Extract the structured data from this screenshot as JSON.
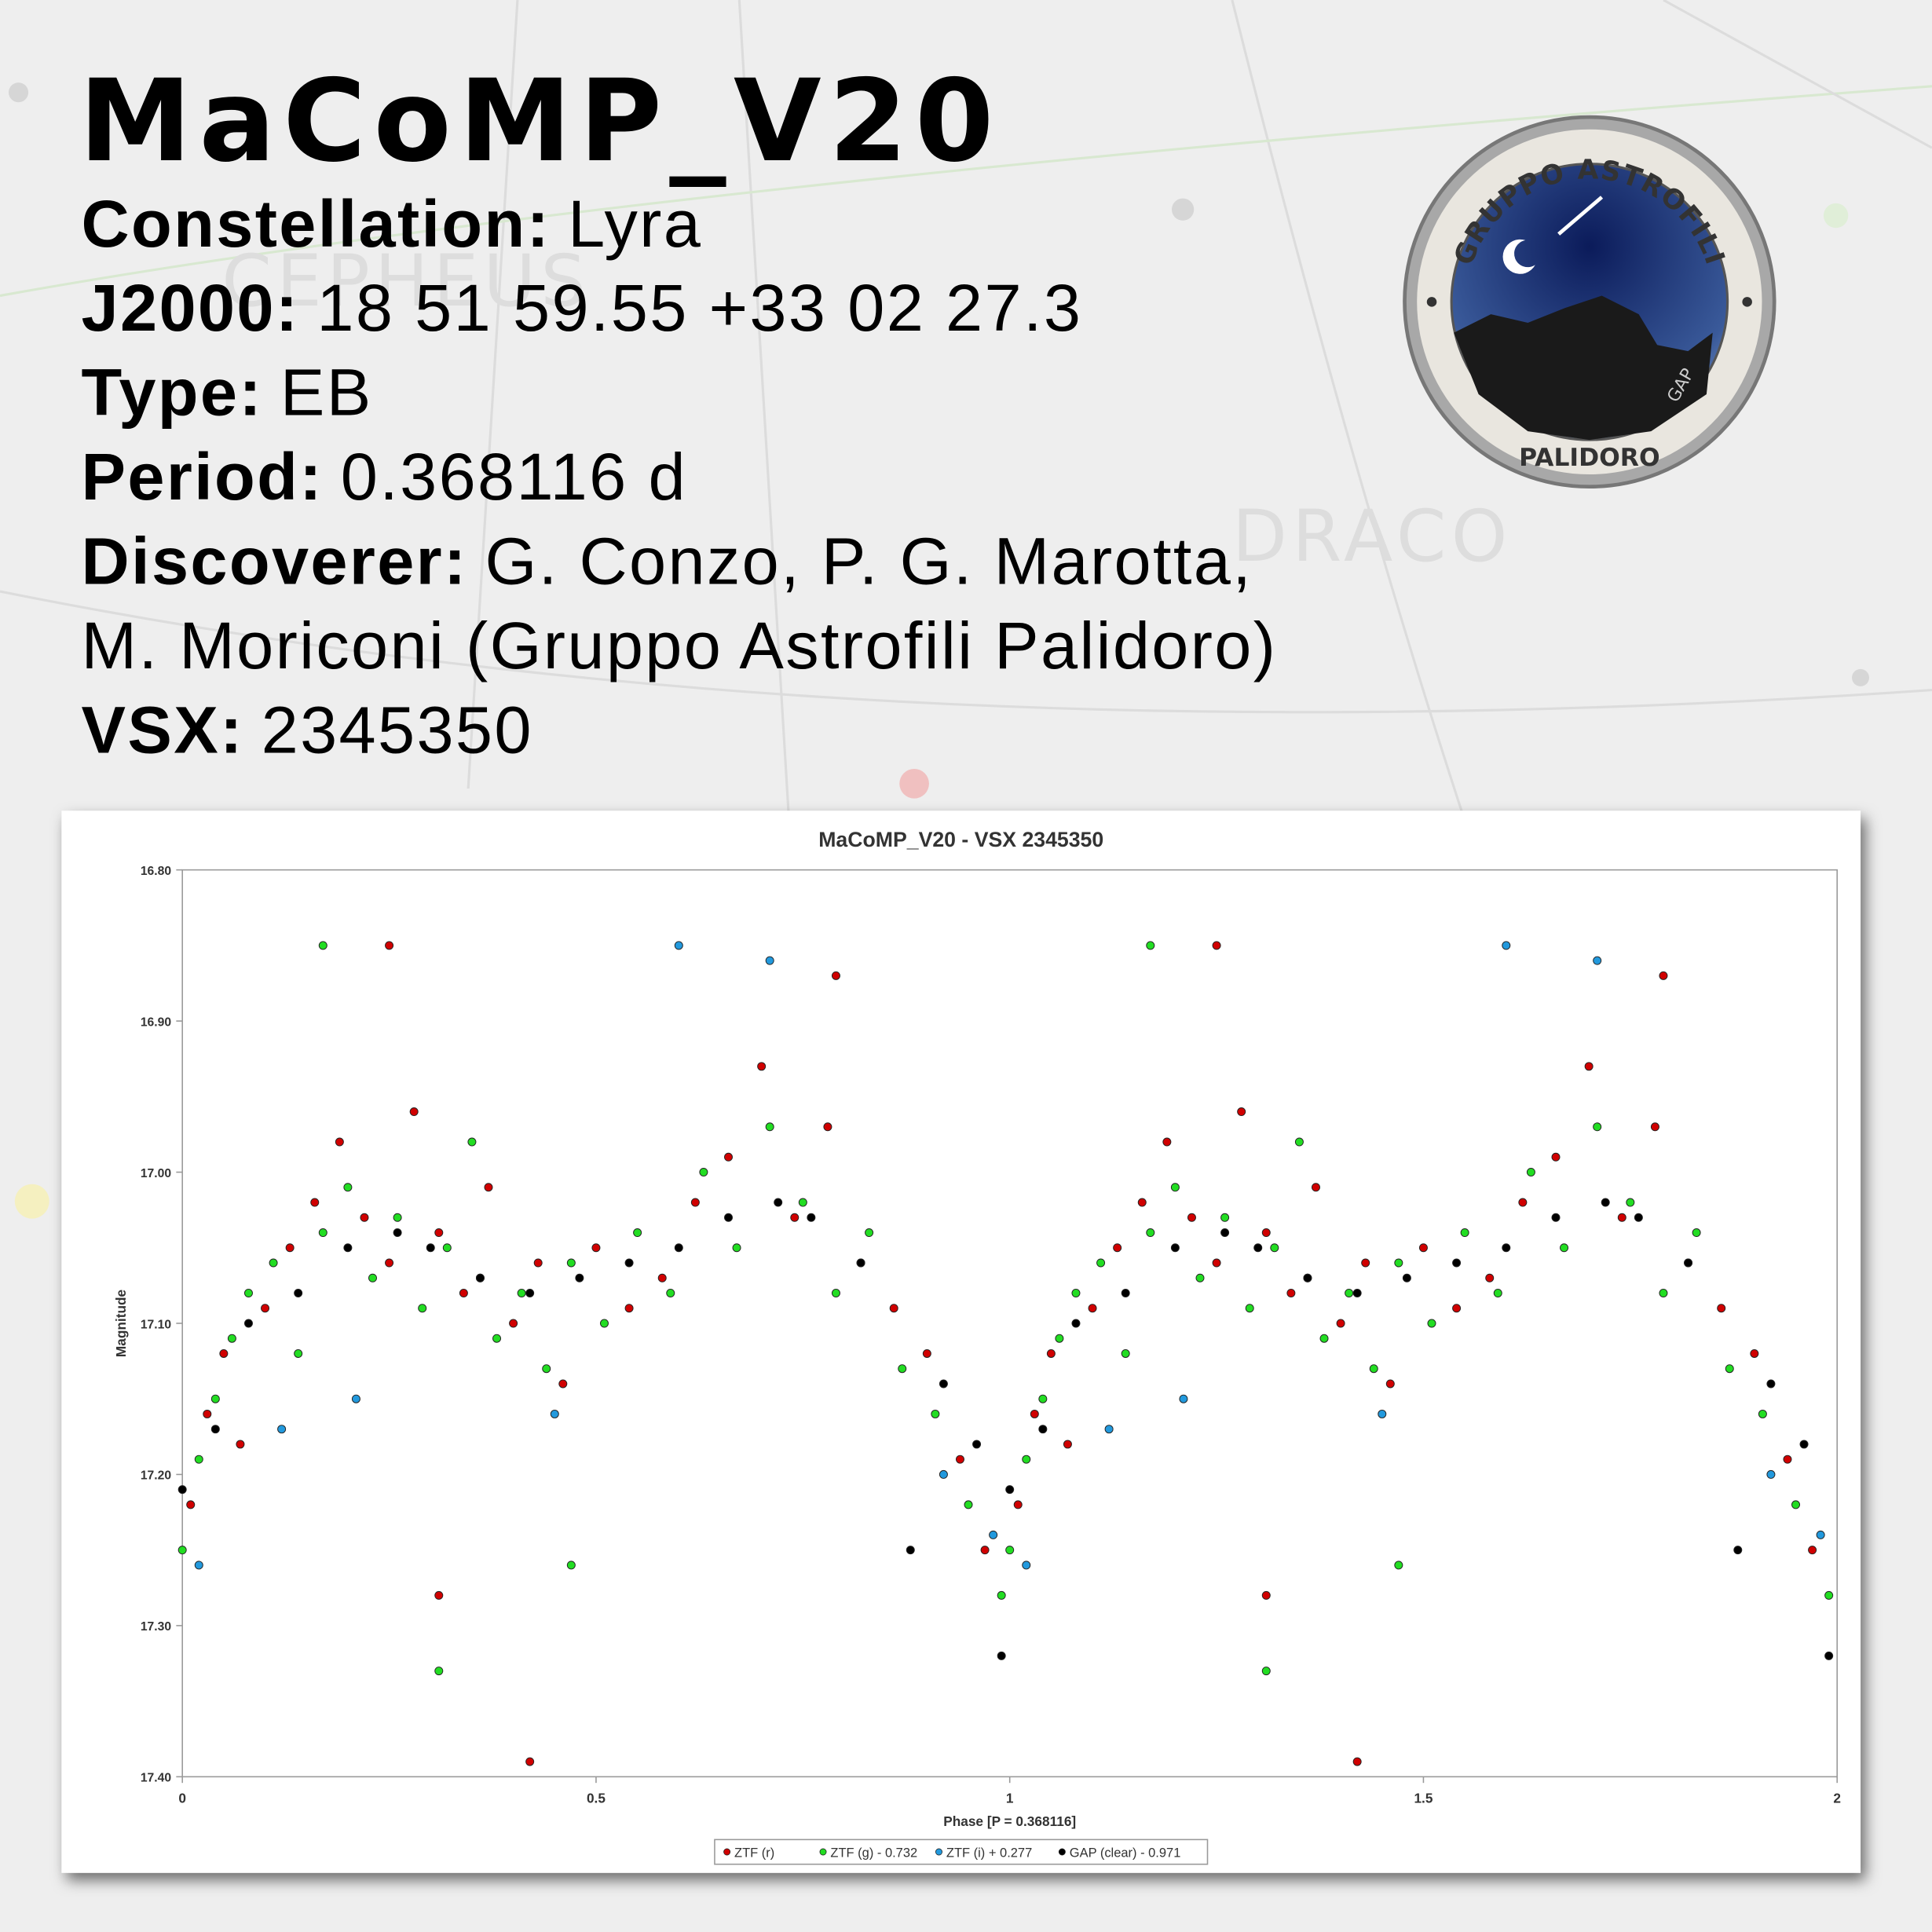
{
  "header": {
    "title": "MaCoMP_V20",
    "fields": [
      {
        "label": "Constellation:",
        "lines": [
          "Lyra"
        ]
      },
      {
        "label": "J2000:",
        "lines": [
          "18 51 59.55 +33 02 27.3"
        ]
      },
      {
        "label": "Type:",
        "lines": [
          "EB"
        ]
      },
      {
        "label": "Period:",
        "lines": [
          "0.368116 d"
        ]
      },
      {
        "label": "Discoverer:",
        "lines": [
          "G. Conzo, P. G. Marotta,",
          "M. Moriconi (Gruppo Astrofili Palidoro)"
        ]
      },
      {
        "label": "VSX:",
        "lines": [
          "2345350"
        ]
      }
    ]
  },
  "logo": {
    "top": "GRUPPO ASTROFILI",
    "bottom": "PALIDORO",
    "side": "GAP"
  },
  "background": {
    "labels": [
      "CEPHEUS",
      "DRACO"
    ]
  },
  "chart_data": {
    "type": "scatter",
    "title": "MaCoMP_V20 - VSX 2345350",
    "x_label": "Phase [P = 0.368116]",
    "y_label": "Magnitude",
    "xlim": [
      0,
      2
    ],
    "xticks": [
      0,
      0.5,
      1,
      1.5,
      2
    ],
    "ylim": [
      16.8,
      17.4
    ],
    "y_inverted": true,
    "yticks": [
      {
        "value": 16.8,
        "label": "16.80"
      },
      {
        "value": 16.9,
        "label": "16.90"
      },
      {
        "value": 17.0,
        "label": "17.00"
      },
      {
        "value": 17.1,
        "label": "17.10"
      },
      {
        "value": 17.2,
        "label": "17.20"
      },
      {
        "value": 17.3,
        "label": "17.30"
      },
      {
        "value": 17.4,
        "label": "17.40"
      }
    ],
    "grid": false,
    "legend": "bottom",
    "series": [
      {
        "name": "ZTF (r)",
        "color": "#d00000",
        "x": [
          0.01,
          0.03,
          0.05,
          0.07,
          0.1,
          0.13,
          0.16,
          0.19,
          0.22,
          0.25,
          0.28,
          0.31,
          0.34,
          0.37,
          0.4,
          0.43,
          0.46,
          0.5,
          0.54,
          0.58,
          0.62,
          0.66,
          0.7,
          0.74,
          0.78,
          0.82,
          0.86,
          0.9,
          0.94,
          0.97,
          0.25,
          0.31,
          0.42,
          0.79,
          1.01,
          1.03,
          1.05,
          1.07,
          1.1,
          1.13,
          1.16,
          1.19,
          1.22,
          1.25,
          1.28,
          1.31,
          1.34,
          1.37,
          1.4,
          1.43,
          1.46,
          1.5,
          1.54,
          1.58,
          1.62,
          1.66,
          1.7,
          1.74,
          1.78,
          1.82,
          1.86,
          1.9,
          1.94,
          1.97,
          1.25,
          1.31,
          1.42,
          1.79
        ],
        "values": [
          17.22,
          17.16,
          17.12,
          17.18,
          17.09,
          17.05,
          17.02,
          16.98,
          17.03,
          17.06,
          16.96,
          17.04,
          17.08,
          17.01,
          17.1,
          17.06,
          17.14,
          17.05,
          17.09,
          17.07,
          17.02,
          16.99,
          16.93,
          17.03,
          16.97,
          17.06,
          17.09,
          17.12,
          17.19,
          17.25,
          16.85,
          17.28,
          17.39,
          16.87,
          17.22,
          17.16,
          17.12,
          17.18,
          17.09,
          17.05,
          17.02,
          16.98,
          17.03,
          17.06,
          16.96,
          17.04,
          17.08,
          17.01,
          17.1,
          17.06,
          17.14,
          17.05,
          17.09,
          17.07,
          17.02,
          16.99,
          16.93,
          17.03,
          16.97,
          17.06,
          17.09,
          17.12,
          17.19,
          17.25,
          16.85,
          17.28,
          17.39,
          16.87
        ]
      },
      {
        "name": "ZTF (g) - 0.732",
        "color": "#22dd22",
        "x": [
          0.0,
          0.02,
          0.04,
          0.06,
          0.08,
          0.11,
          0.14,
          0.17,
          0.2,
          0.23,
          0.26,
          0.29,
          0.32,
          0.35,
          0.38,
          0.41,
          0.44,
          0.47,
          0.51,
          0.55,
          0.59,
          0.63,
          0.67,
          0.71,
          0.75,
          0.79,
          0.83,
          0.87,
          0.91,
          0.95,
          0.99,
          0.17,
          0.31,
          0.47,
          1.0,
          1.02,
          1.04,
          1.06,
          1.08,
          1.11,
          1.14,
          1.17,
          1.2,
          1.23,
          1.26,
          1.29,
          1.32,
          1.35,
          1.38,
          1.41,
          1.44,
          1.47,
          1.51,
          1.55,
          1.59,
          1.63,
          1.67,
          1.71,
          1.75,
          1.79,
          1.83,
          1.87,
          1.91,
          1.95,
          1.99,
          1.17,
          1.31,
          1.47
        ],
        "values": [
          17.25,
          17.19,
          17.15,
          17.11,
          17.08,
          17.06,
          17.12,
          17.04,
          17.01,
          17.07,
          17.03,
          17.09,
          17.05,
          16.98,
          17.11,
          17.08,
          17.13,
          17.06,
          17.1,
          17.04,
          17.08,
          17.0,
          17.05,
          16.97,
          17.02,
          17.08,
          17.04,
          17.13,
          17.16,
          17.22,
          17.28,
          16.85,
          17.33,
          17.26,
          17.25,
          17.19,
          17.15,
          17.11,
          17.08,
          17.06,
          17.12,
          17.04,
          17.01,
          17.07,
          17.03,
          17.09,
          17.05,
          16.98,
          17.11,
          17.08,
          17.13,
          17.06,
          17.1,
          17.04,
          17.08,
          17.0,
          17.05,
          16.97,
          17.02,
          17.08,
          17.04,
          17.13,
          17.16,
          17.22,
          17.28,
          16.85,
          17.33,
          17.26
        ]
      },
      {
        "name": "ZTF (i) + 0.277",
        "color": "#2299dd",
        "x": [
          0.02,
          0.12,
          0.21,
          0.36,
          0.45,
          0.6,
          0.71,
          0.92,
          0.98,
          1.02,
          1.12,
          1.21,
          1.36,
          1.45,
          1.6,
          1.71,
          1.92,
          1.98
        ],
        "values": [
          17.26,
          17.17,
          17.15,
          17.07,
          17.16,
          16.85,
          16.86,
          17.2,
          17.24,
          17.26,
          17.17,
          17.15,
          17.07,
          17.16,
          16.85,
          16.86,
          17.2,
          17.24
        ]
      },
      {
        "name": "GAP (clear) - 0.971",
        "color": "#000000",
        "x": [
          0.0,
          0.04,
          0.08,
          0.14,
          0.2,
          0.26,
          0.3,
          0.36,
          0.42,
          0.48,
          0.54,
          0.6,
          0.66,
          0.72,
          0.76,
          0.82,
          0.88,
          0.92,
          0.96,
          0.99,
          1.0,
          1.04,
          1.08,
          1.14,
          1.2,
          1.26,
          1.3,
          1.36,
          1.42,
          1.48,
          1.54,
          1.6,
          1.66,
          1.72,
          1.76,
          1.82,
          1.88,
          1.92,
          1.96,
          1.99
        ],
        "values": [
          17.21,
          17.17,
          17.1,
          17.08,
          17.05,
          17.04,
          17.05,
          17.07,
          17.08,
          17.07,
          17.06,
          17.05,
          17.03,
          17.02,
          17.03,
          17.06,
          17.25,
          17.14,
          17.18,
          17.32,
          17.21,
          17.17,
          17.1,
          17.08,
          17.05,
          17.04,
          17.05,
          17.07,
          17.08,
          17.07,
          17.06,
          17.05,
          17.03,
          17.02,
          17.03,
          17.06,
          17.25,
          17.14,
          17.18,
          17.32
        ]
      }
    ]
  }
}
